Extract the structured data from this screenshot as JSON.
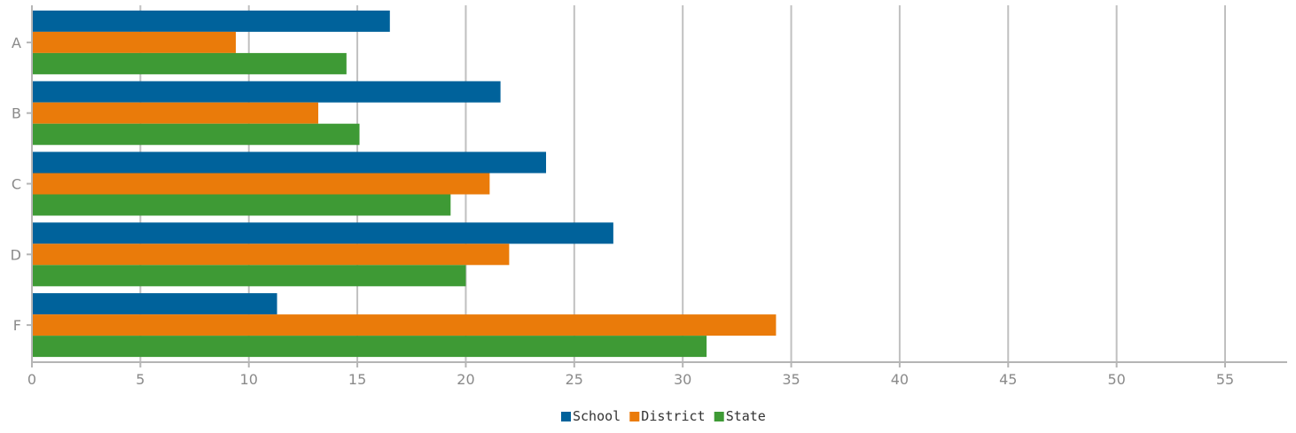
{
  "chart_data": {
    "type": "bar",
    "orientation": "horizontal",
    "categories": [
      "A",
      "B",
      "C",
      "D",
      "F"
    ],
    "series": [
      {
        "name": "School",
        "color": "#00629b",
        "values": [
          16.5,
          21.6,
          23.7,
          26.8,
          11.3
        ]
      },
      {
        "name": "District",
        "color": "#ea7b0a",
        "values": [
          9.4,
          13.2,
          21.1,
          22.0,
          34.3
        ]
      },
      {
        "name": "State",
        "color": "#3e9a35",
        "values": [
          14.5,
          15.1,
          19.3,
          20.0,
          31.1
        ]
      }
    ],
    "xlim": [
      0,
      58
    ],
    "xticks": [
      0,
      5,
      10,
      15,
      20,
      25,
      30,
      35,
      40,
      45,
      50,
      55
    ],
    "grid": true,
    "legend_position": "bottom",
    "title": "",
    "xlabel": "",
    "ylabel": ""
  }
}
